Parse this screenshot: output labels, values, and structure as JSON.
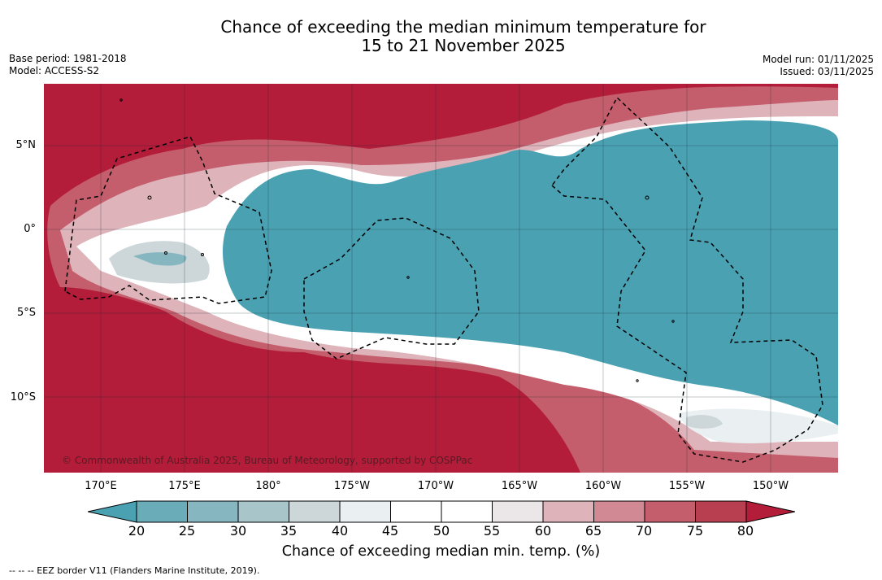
{
  "title_line1": "Chance of exceeding the median minimum temperature for",
  "title_line2": "15 to 21 November 2025",
  "base_period": "Base period: 1981-2018",
  "model": "Model: ACCESS-S2",
  "model_run": "Model run: 01/11/2025",
  "issued": "Issued: 03/11/2025",
  "lat_labels": [
    "5°N",
    "0°",
    "5°S",
    "10°S"
  ],
  "lon_labels": [
    "170°E",
    "175°E",
    "180°",
    "175°W",
    "170°W",
    "165°W",
    "160°W",
    "155°W",
    "150°W"
  ],
  "colorbar": {
    "ticks": [
      "20",
      "25",
      "30",
      "35",
      "40",
      "45",
      "50",
      "55",
      "60",
      "65",
      "70",
      "75",
      "80"
    ],
    "colors": [
      "#4aa1b2",
      "#6aacb8",
      "#86b6c0",
      "#a8c6ca",
      "#cdd6d9",
      "#eaeff1",
      "#ffffff",
      "#ffffff",
      "#ebe6e7",
      "#deb3ba",
      "#d18993",
      "#c45e6c",
      "#b73f4f",
      "#b31d3a"
    ],
    "label": "Chance of exceeding median min. temp. (%)"
  },
  "credit": "© Commonwealth of Australia 2025, Bureau of Meteorology, supported by COSPPac",
  "footnote": "-- -- -- EEZ border V11 (Flanders Marine Institute, 2019)."
}
